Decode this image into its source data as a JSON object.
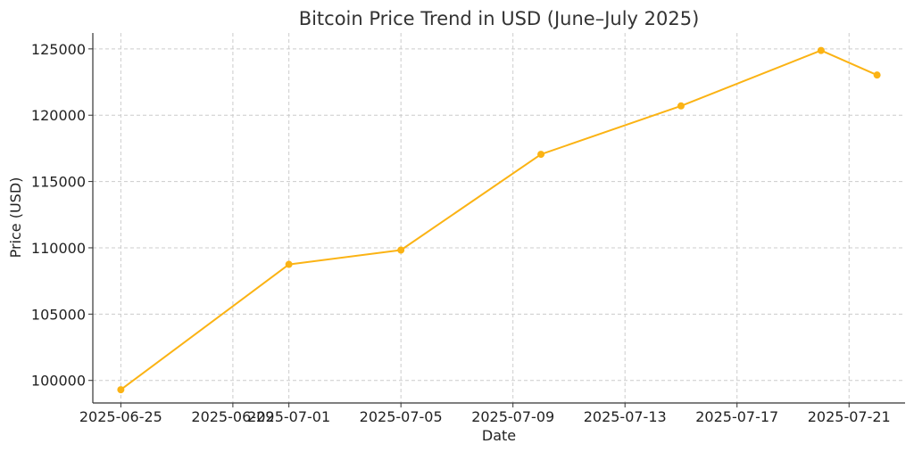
{
  "chart_data": {
    "type": "line",
    "title": "Bitcoin Price Trend in USD (June–July 2025)",
    "xlabel": "Date",
    "ylabel": "Price (USD)",
    "x_ticks": [
      "2025-06-25",
      "2025-06-29",
      "2025-07-01",
      "2025-07-05",
      "2025-07-09",
      "2025-07-13",
      "2025-07-17",
      "2025-07-21"
    ],
    "y_ticks": [
      100000,
      105000,
      110000,
      115000,
      120000,
      125000
    ],
    "xlim": [
      "2025-06-24",
      "2025-07-23"
    ],
    "ylim": [
      98300,
      126200
    ],
    "grid": true,
    "legend": false,
    "series": [
      {
        "color": "#fbb314",
        "points": [
          {
            "x": "2025-06-25",
            "y": 99300
          },
          {
            "x": "2025-07-01",
            "y": 108750
          },
          {
            "x": "2025-07-05",
            "y": 109830
          },
          {
            "x": "2025-07-10",
            "y": 117050
          },
          {
            "x": "2025-07-15",
            "y": 120700
          },
          {
            "x": "2025-07-20",
            "y": 124880
          },
          {
            "x": "2025-07-22",
            "y": 123030
          }
        ]
      }
    ]
  }
}
